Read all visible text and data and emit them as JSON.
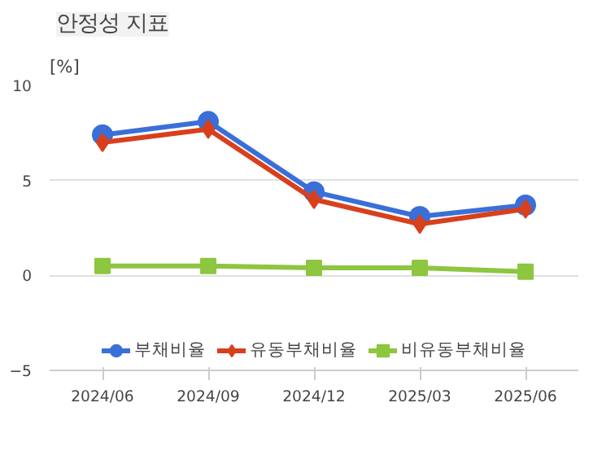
{
  "chart_data": {
    "type": "line",
    "title": "안정성 지표",
    "ylabel": "[%]",
    "categories": [
      "2024/06",
      "2024/09",
      "2024/12",
      "2025/03",
      "2025/06"
    ],
    "series": [
      {
        "name": "부채비율",
        "color": "#3a6fd8",
        "marker": "circle",
        "values": [
          7.4,
          8.1,
          4.4,
          3.1,
          3.7
        ]
      },
      {
        "name": "유동부채비율",
        "color": "#d8401c",
        "marker": "diamond",
        "values": [
          7.0,
          7.7,
          4.0,
          2.7,
          3.5
        ]
      },
      {
        "name": "비유동부채비율",
        "color": "#8dc63f",
        "marker": "square",
        "values": [
          0.5,
          0.5,
          0.4,
          0.4,
          0.2
        ]
      }
    ],
    "ylim": [
      -5,
      10
    ],
    "yticks": [
      -5,
      0,
      5,
      10
    ],
    "grid": "y",
    "legend": "bottom",
    "line_style": "solid"
  }
}
